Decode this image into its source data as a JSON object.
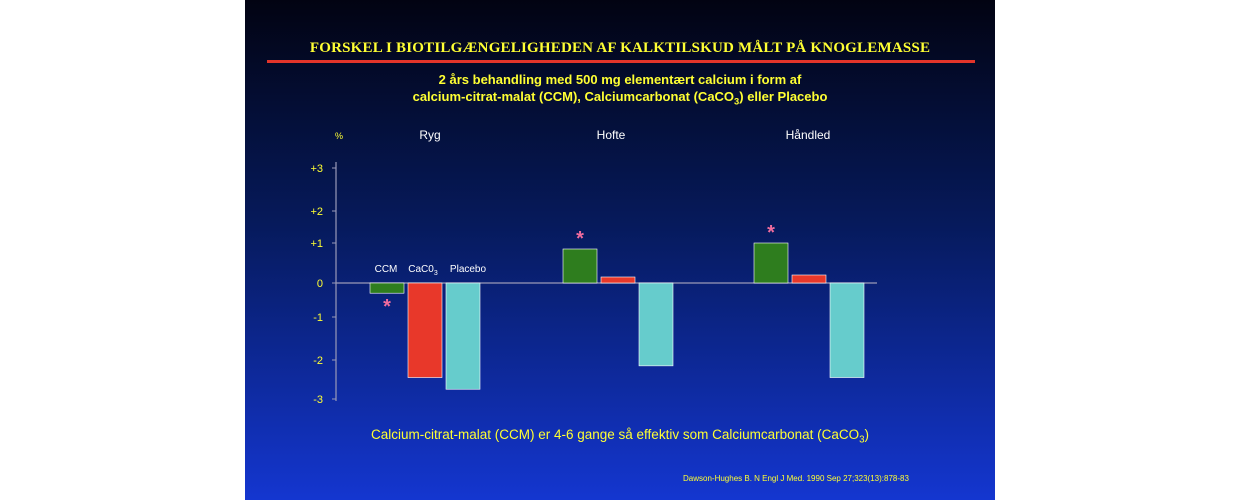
{
  "slide": {
    "title": "FORSKEL I BIOTILGÆNGELIGHEDEN AF KALKTILSKUD MÅLT PÅ KNOGLEMASSE",
    "subtitle_line1": "2 års behandling med 500 mg elementært calcium i form af",
    "subtitle_line2_a": "calcium-citrat-malat (CCM), Calciumcarbonat (CaCO",
    "subtitle_line2_sub": "3",
    "subtitle_line2_b": ") eller Placebo",
    "conclusion_a": "Calcium-citrat-malat (CCM) er 4-6 gange så effektiv som Calciumcarbonat (CaCO",
    "conclusion_sub": "3",
    "conclusion_b": ")",
    "source": "Dawson-Hughes B. N Engl J Med. 1990 Sep 27;323(13):878-83"
  },
  "chart_data": {
    "type": "bar",
    "ylabel": "%",
    "ylim": [
      -3,
      3
    ],
    "yticks": [
      "+3",
      "+2",
      "+1",
      "0",
      "-1",
      "-2",
      "-3"
    ],
    "ytick_values": [
      3,
      2,
      1,
      0,
      -1,
      -2,
      -3
    ],
    "categories": [
      "Ryg",
      "Hofte",
      "Håndled"
    ],
    "legend_labels": [
      "CCM",
      "CaC0",
      "Placebo"
    ],
    "legend_sub": "3",
    "significance_marker": "*",
    "series": [
      {
        "name": "CCM",
        "color": "#2e7d1e",
        "values": [
          -0.3,
          0.85,
          1.0
        ],
        "significant": [
          true,
          true,
          true
        ]
      },
      {
        "name": "CaC0",
        "color": "#e8382a",
        "values": [
          -2.45,
          0.15,
          0.2
        ],
        "significant": [
          false,
          false,
          false
        ]
      },
      {
        "name": "Placebo",
        "color": "#66cccc",
        "values": [
          -2.75,
          -2.15,
          -2.45
        ],
        "significant": [
          false,
          false,
          false
        ]
      }
    ],
    "colors": {
      "text": "#ffff33",
      "labels": "#ffffff",
      "axis": "#9a9ab8",
      "marker": "#f06c9e"
    }
  }
}
